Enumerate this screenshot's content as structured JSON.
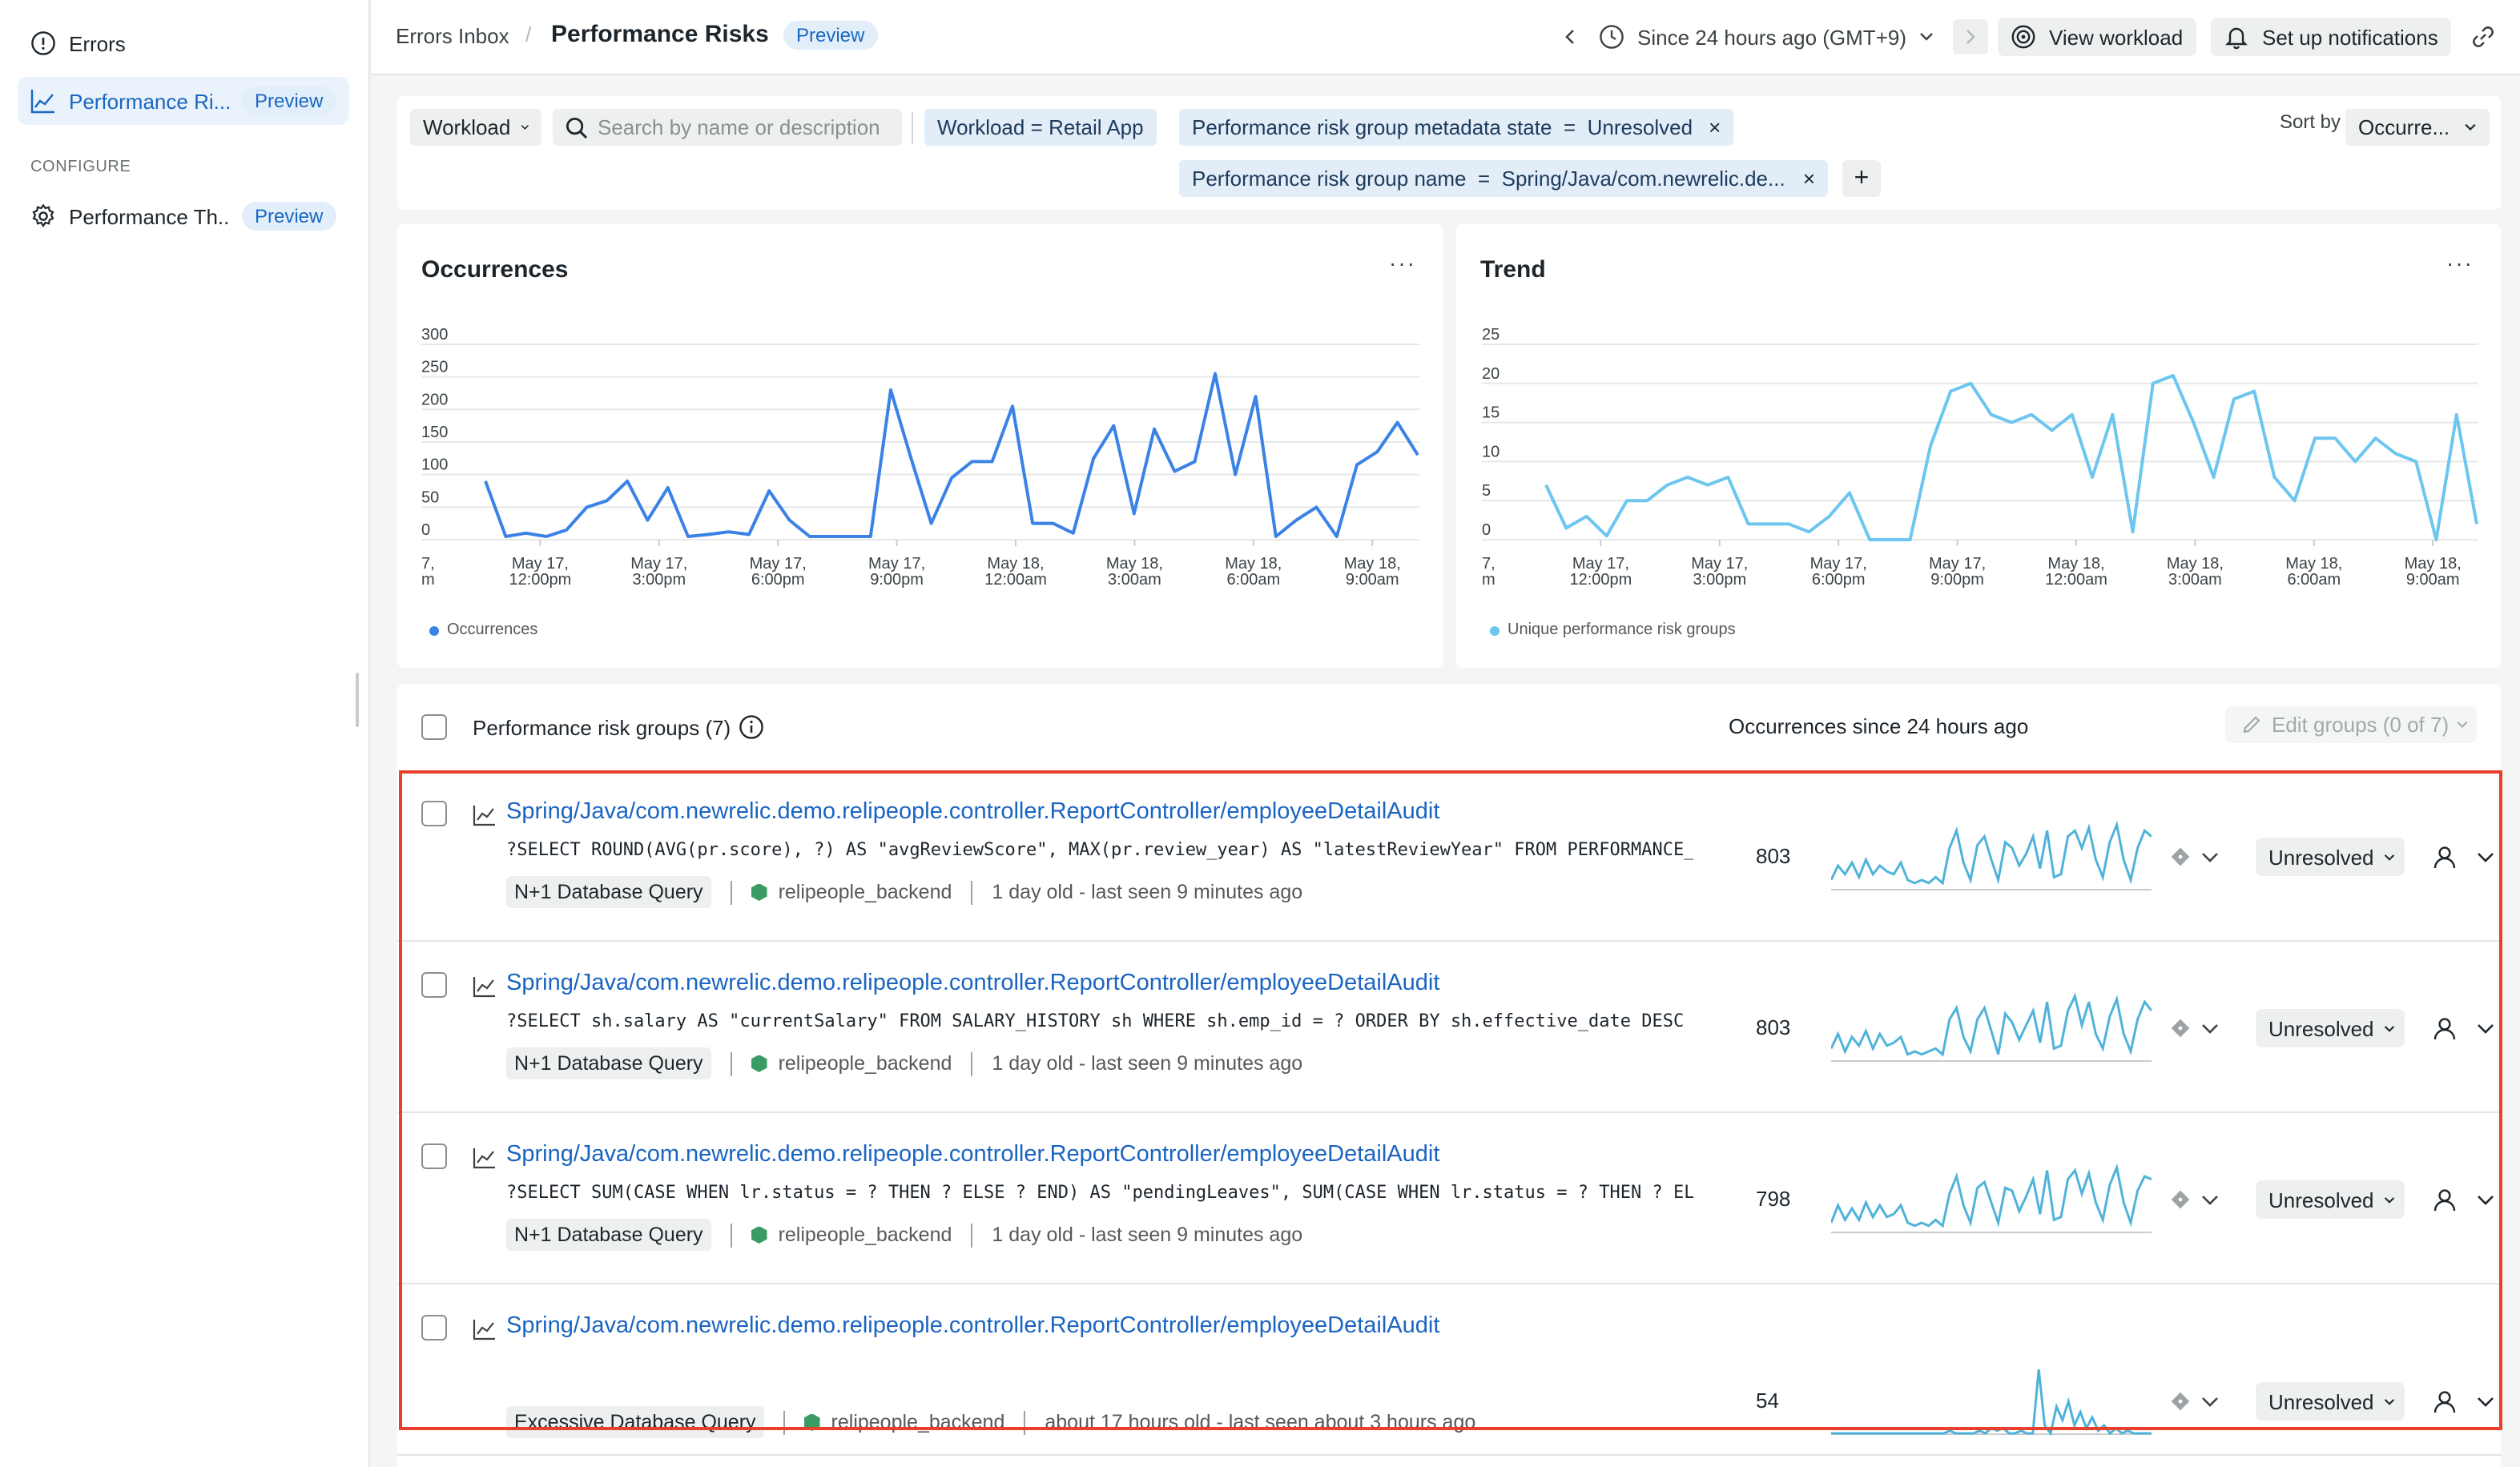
{
  "sidebar": {
    "items": [
      {
        "label": "Errors",
        "icon": "alert-circle-icon"
      },
      {
        "label": "Performance Ri...",
        "badge": "Preview",
        "icon": "line-chart-icon"
      },
      {
        "label": "Performance Th...",
        "badge": "Preview",
        "icon": "gear-icon"
      }
    ],
    "section_label": "CONFIGURE"
  },
  "header": {
    "breadcrumb": "Errors Inbox",
    "title": "Performance Risks",
    "badge": "Preview",
    "time_range": "Since 24 hours ago (GMT+9)",
    "view_workload": "View workload",
    "set_up_notifications": "Set up notifications"
  },
  "filters": {
    "workload_label": "Workload",
    "search_placeholder": "Search by name or description",
    "chips": [
      {
        "key": "Workload",
        "op": "=",
        "value": "Retail App",
        "removable": false
      },
      {
        "key": "Performance risk group metadata state",
        "op": "=",
        "value": "Unresolved",
        "removable": true
      },
      {
        "key": "Performance risk group name",
        "op": "=",
        "value": "Spring/Java/com.newrelic.de...",
        "removable": true
      }
    ],
    "add": "+",
    "sort_by": "Sort by",
    "sort_value": "Occurre..."
  },
  "charts": {
    "occurrences": {
      "title": "Occurrences",
      "legend": "Occurrences",
      "color": "#3b82e6"
    },
    "trend": {
      "title": "Trend",
      "legend": "Unique performance risk groups",
      "color": "#6cc6ef"
    }
  },
  "chart_data": [
    {
      "type": "line",
      "title": "Occurrences",
      "ylim": [
        0,
        300
      ],
      "yticks": [
        "300",
        "250",
        "200",
        "150",
        "100",
        "50",
        "0"
      ],
      "xticks": [
        [
          "7,",
          "m"
        ],
        [
          "May 17,",
          "12:00pm"
        ],
        [
          "May 17,",
          "3:00pm"
        ],
        [
          "May 17,",
          "6:00pm"
        ],
        [
          "May 17,",
          "9:00pm"
        ],
        [
          "May 18,",
          "12:00am"
        ],
        [
          "May 18,",
          "3:00am"
        ],
        [
          "May 18,",
          "6:00am"
        ],
        [
          "May 18,",
          "9:00am"
        ]
      ],
      "series": [
        {
          "name": "Occurrences",
          "values": [
            90,
            5,
            10,
            5,
            15,
            50,
            60,
            90,
            30,
            80,
            5,
            8,
            12,
            8,
            75,
            30,
            5,
            5,
            5,
            5,
            230,
            125,
            25,
            95,
            120,
            120,
            205,
            25,
            25,
            10,
            125,
            175,
            40,
            170,
            105,
            120,
            255,
            100,
            220,
            5,
            30,
            50,
            5,
            115,
            135,
            180,
            130
          ]
        }
      ]
    },
    {
      "type": "line",
      "title": "Trend",
      "ylim": [
        0,
        25
      ],
      "yticks": [
        "25",
        "20",
        "15",
        "10",
        "5",
        "0"
      ],
      "xticks": [
        [
          "7,",
          "m"
        ],
        [
          "May 17,",
          "12:00pm"
        ],
        [
          "May 17,",
          "3:00pm"
        ],
        [
          "May 17,",
          "6:00pm"
        ],
        [
          "May 17,",
          "9:00pm"
        ],
        [
          "May 18,",
          "12:00am"
        ],
        [
          "May 18,",
          "3:00am"
        ],
        [
          "May 18,",
          "6:00am"
        ],
        [
          "May 18,",
          "9:00am"
        ]
      ],
      "series": [
        {
          "name": "Unique performance risk groups",
          "values": [
            7,
            1.5,
            3,
            0.5,
            5,
            5,
            7,
            8,
            7,
            8,
            2,
            2,
            2,
            1,
            3,
            6,
            0,
            0,
            0,
            12,
            19,
            20,
            16,
            15,
            16,
            14,
            16,
            8,
            16,
            1,
            20,
            21,
            15,
            8,
            18,
            19,
            8,
            5,
            13,
            13,
            10,
            13,
            11,
            10,
            0,
            16,
            2
          ]
        }
      ]
    }
  ],
  "table": {
    "header_label": "Performance risk groups (7)",
    "occurrences_header": "Occurrences since 24 hours ago",
    "edit_groups": "Edit groups (0 of 7)",
    "rows": [
      {
        "title": "Spring/Java/com.newrelic.demo.relipeople.controller.ReportController/employeeDetailAudit",
        "sql": "?SELECT ROUND(AVG(pr.score), ?) AS \"avgReviewScore\", MAX(pr.review_year) AS \"latestReviewYear\" FROM PERFORMANCE_REVIEWS",
        "type": "N+1 Database Query",
        "entity": "relipeople_backend",
        "age": "1 day old - last seen 9 minutes ago",
        "count": "803",
        "status": "Unresolved",
        "spark": [
          3,
          8,
          5,
          9,
          4,
          10,
          5,
          8,
          6,
          5,
          9,
          3,
          2,
          3,
          2,
          4,
          2,
          14,
          20,
          9,
          3,
          15,
          18,
          10,
          3,
          16,
          14,
          8,
          12,
          18,
          7,
          20,
          4,
          5,
          18,
          20,
          14,
          21,
          10,
          4,
          16,
          22,
          10,
          3,
          14,
          20,
          18
        ]
      },
      {
        "title": "Spring/Java/com.newrelic.demo.relipeople.controller.ReportController/employeeDetailAudit",
        "sql": "?SELECT sh.salary AS \"currentSalary\" FROM SALARY_HISTORY sh WHERE sh.emp_id = ? ORDER BY sh.effective_date DESC LIMIT",
        "type": "N+1 Database Query",
        "entity": "relipeople_backend",
        "age": "1 day old - last seen 9 minutes ago",
        "count": "803",
        "status": "Unresolved",
        "spark": [
          4,
          9,
          3,
          8,
          5,
          10,
          4,
          9,
          5,
          6,
          8,
          2,
          3,
          2,
          3,
          4,
          2,
          14,
          18,
          8,
          3,
          14,
          18,
          10,
          2,
          16,
          13,
          7,
          12,
          17,
          6,
          20,
          4,
          5,
          17,
          22,
          12,
          20,
          9,
          4,
          15,
          21,
          9,
          3,
          14,
          20,
          17
        ]
      },
      {
        "title": "Spring/Java/com.newrelic.demo.relipeople.controller.ReportController/employeeDetailAudit",
        "sql": "?SELECT SUM(CASE WHEN lr.status = ? THEN ? ELSE ? END) AS \"pendingLeaves\", SUM(CASE WHEN lr.status = ? THEN ? ELSE ? END)",
        "type": "N+1 Database Query",
        "entity": "relipeople_backend",
        "age": "1 day old - last seen 9 minutes ago",
        "count": "798",
        "status": "Unresolved",
        "spark": [
          3,
          9,
          4,
          8,
          4,
          10,
          5,
          9,
          5,
          6,
          9,
          3,
          2,
          3,
          2,
          4,
          2,
          13,
          19,
          9,
          3,
          15,
          17,
          10,
          3,
          15,
          14,
          7,
          12,
          18,
          6,
          21,
          4,
          5,
          18,
          21,
          13,
          20,
          10,
          4,
          16,
          22,
          10,
          3,
          14,
          19,
          18
        ]
      },
      {
        "title": "Spring/Java/com.newrelic.demo.relipeople.controller.ReportController/employeeDetailAudit",
        "sql": "",
        "type": "Excessive Database Query",
        "entity": "relipeople_backend",
        "age": "about 17 hours old - last seen about 3 hours ago",
        "count": "54",
        "status": "Unresolved",
        "spark": [
          0,
          0,
          0,
          0,
          0,
          0,
          0,
          0,
          0,
          0,
          0,
          0,
          0,
          0,
          0,
          0,
          0,
          0,
          0,
          0,
          1,
          0,
          0,
          0,
          0,
          1,
          0,
          2,
          1,
          2,
          0,
          0,
          1,
          0,
          0,
          24,
          3,
          0,
          10,
          5,
          12,
          3,
          8,
          2,
          6,
          1,
          3,
          0,
          2,
          0,
          1,
          0,
          0,
          0,
          0
        ]
      }
    ]
  }
}
